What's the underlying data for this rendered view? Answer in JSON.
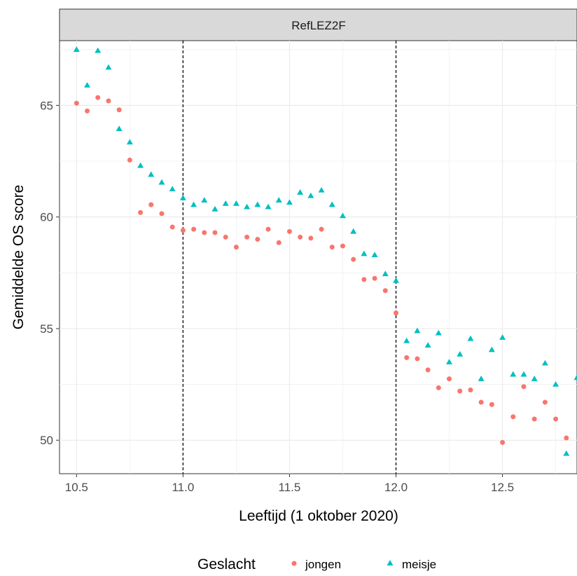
{
  "chart_data": {
    "type": "scatter",
    "facet_label": "RefLEZ2F",
    "xlabel": "Leeftijd (1 oktober 2020)",
    "ylabel": "Gemiddelde OS score",
    "xlim": [
      10.42,
      12.85
    ],
    "ylim": [
      48.5,
      67.9
    ],
    "x_ticks": [
      10.5,
      11.0,
      11.5,
      12.0,
      12.5
    ],
    "x_tick_labels": [
      "10.5",
      "11.0",
      "11.5",
      "12.0",
      "12.5"
    ],
    "y_ticks": [
      50,
      55,
      60,
      65
    ],
    "y_tick_labels": [
      "50",
      "55",
      "60",
      "65"
    ],
    "vlines": [
      11.0,
      12.0
    ],
    "grid": true,
    "legend": {
      "title": "Geslacht",
      "position": "bottom"
    },
    "series": [
      {
        "name": "jongen",
        "color": "#F8766D",
        "shape": "circle",
        "x": [
          10.5,
          10.55,
          10.6,
          10.65,
          10.7,
          10.75,
          10.8,
          10.85,
          10.9,
          10.95,
          11.0,
          11.05,
          11.1,
          11.15,
          11.2,
          11.25,
          11.3,
          11.35,
          11.4,
          11.45,
          11.5,
          11.55,
          11.6,
          11.65,
          11.7,
          11.75,
          11.8,
          11.85,
          11.9,
          11.95,
          12.0,
          12.05,
          12.1,
          12.15,
          12.2,
          12.25,
          12.3,
          12.35,
          12.4,
          12.45,
          12.5,
          12.55,
          12.6,
          12.65,
          12.7,
          12.75,
          12.8
        ],
        "y": [
          65.1,
          64.75,
          65.35,
          65.2,
          64.8,
          62.55,
          60.2,
          60.55,
          60.15,
          59.55,
          59.4,
          59.45,
          59.3,
          59.3,
          59.1,
          58.65,
          59.1,
          59.0,
          59.45,
          58.85,
          59.35,
          59.1,
          59.05,
          59.45,
          58.65,
          58.7,
          58.1,
          57.2,
          57.25,
          56.7,
          55.7,
          53.7,
          53.65,
          53.15,
          52.35,
          52.75,
          52.2,
          52.25,
          51.7,
          51.6,
          49.9,
          51.05,
          52.4,
          50.95,
          51.7,
          50.95,
          50.1
        ]
      },
      {
        "name": "meisje",
        "color": "#00BFC4",
        "shape": "triangle",
        "x": [
          10.5,
          10.55,
          10.6,
          10.65,
          10.7,
          10.75,
          10.8,
          10.85,
          10.9,
          10.95,
          11.0,
          11.05,
          11.1,
          11.15,
          11.2,
          11.25,
          11.3,
          11.35,
          11.4,
          11.45,
          11.5,
          11.55,
          11.6,
          11.65,
          11.7,
          11.75,
          11.8,
          11.85,
          11.9,
          11.95,
          12.0,
          12.05,
          12.1,
          12.15,
          12.2,
          12.25,
          12.3,
          12.35,
          12.4,
          12.45,
          12.5,
          12.55,
          12.6,
          12.65,
          12.7,
          12.75,
          12.8,
          12.85
        ],
        "y": [
          67.5,
          65.9,
          67.45,
          66.7,
          63.95,
          63.35,
          62.3,
          61.9,
          61.55,
          61.25,
          60.85,
          60.55,
          60.75,
          60.35,
          60.6,
          60.6,
          60.45,
          60.55,
          60.45,
          60.75,
          60.65,
          61.1,
          60.95,
          61.2,
          60.55,
          60.05,
          59.35,
          58.35,
          58.3,
          57.45,
          57.15,
          54.45,
          54.9,
          54.25,
          54.8,
          53.5,
          53.85,
          54.55,
          52.75,
          54.05,
          54.6,
          52.95,
          52.95,
          52.75,
          53.45,
          52.5,
          49.4,
          52.8
        ]
      }
    ]
  }
}
